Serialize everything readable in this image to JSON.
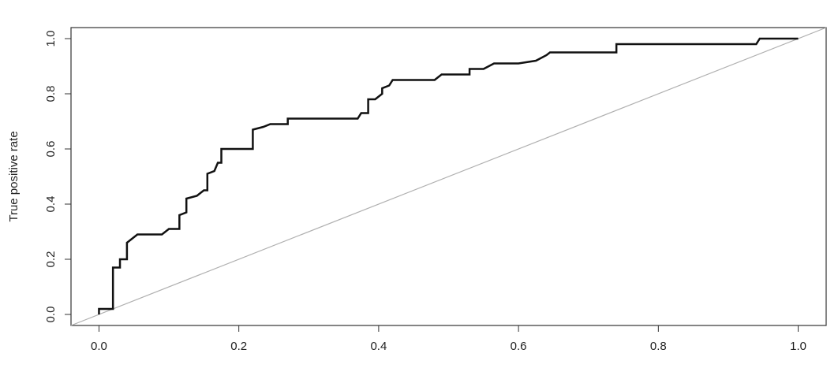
{
  "chart_data": {
    "type": "line",
    "ylabel": "True positive rate",
    "series": [
      {
        "color": "#111111",
        "x": [
          0,
          0,
          0.02,
          0.02,
          0.03,
          0.03,
          0.04,
          0.04,
          0.05,
          0.055,
          0.09,
          0.1,
          0.115,
          0.115,
          0.125,
          0.125,
          0.14,
          0.15,
          0.155,
          0.155,
          0.165,
          0.17,
          0.175,
          0.175,
          0.22,
          0.22,
          0.235,
          0.245,
          0.27,
          0.27,
          0.37,
          0.375,
          0.385,
          0.385,
          0.395,
          0.405,
          0.405,
          0.415,
          0.42,
          0.48,
          0.49,
          0.53,
          0.53,
          0.55,
          0.565,
          0.6,
          0.625,
          0.64,
          0.645,
          0.74,
          0.74,
          0.94,
          0.945,
          1.0
        ],
        "values": [
          0,
          0.02,
          0.02,
          0.17,
          0.17,
          0.2,
          0.2,
          0.26,
          0.28,
          0.29,
          0.29,
          0.31,
          0.31,
          0.36,
          0.37,
          0.42,
          0.43,
          0.45,
          0.45,
          0.51,
          0.52,
          0.55,
          0.55,
          0.6,
          0.6,
          0.67,
          0.68,
          0.69,
          0.69,
          0.71,
          0.71,
          0.73,
          0.73,
          0.78,
          0.78,
          0.8,
          0.82,
          0.83,
          0.85,
          0.85,
          0.87,
          0.87,
          0.89,
          0.89,
          0.91,
          0.91,
          0.92,
          0.94,
          0.95,
          0.95,
          0.98,
          0.98,
          1.0,
          1.0
        ]
      }
    ],
    "diagonal_color": "#b0b0b0",
    "xlim": [
      -0.04,
      1.04
    ],
    "ylim": [
      -0.04,
      1.04
    ],
    "xticks": [
      {
        "value": 0,
        "label": "0.0"
      },
      0.2,
      0.4,
      0.6,
      0.8,
      {
        "value": 1,
        "label": "1.0"
      }
    ],
    "yticks": [
      {
        "value": 0,
        "label": "0.0"
      },
      0.2,
      0.4,
      0.6,
      0.8,
      {
        "value": 1,
        "label": "1.0"
      }
    ]
  }
}
